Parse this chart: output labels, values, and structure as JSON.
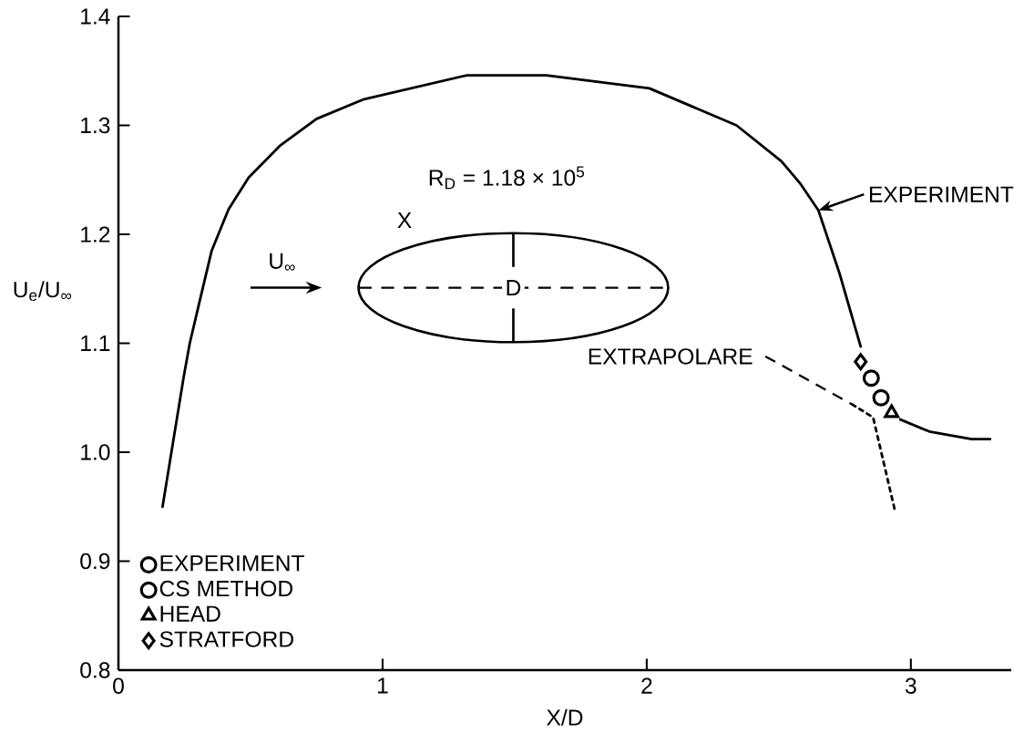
{
  "chart_data": {
    "type": "line",
    "xlabel": "X/D",
    "ylabel": "U$_{e}$/U$_{∞}$",
    "xlim": [
      0,
      3.38
    ],
    "ylim": [
      0.8,
      1.4
    ],
    "xticks": [
      0,
      1,
      2,
      3
    ],
    "yticks": [
      0.8,
      0.9,
      {
        "value": 1.0,
        "label": "1.0"
      },
      1.1,
      1.2,
      1.3,
      1.4
    ],
    "legend": "bottom left",
    "series": [
      {
        "name": "EXPERIMENT",
        "color": "#000000",
        "line_style": "solid",
        "x": [
          0.167,
          0.247,
          0.27,
          0.303,
          0.353,
          0.417,
          0.493,
          0.61,
          0.75,
          0.93,
          1.32,
          1.62,
          2.01,
          2.34,
          2.51,
          2.58,
          2.65,
          2.73,
          2.81,
          2.88,
          2.96,
          3.07,
          3.23,
          3.3
        ],
        "values": [
          0.95,
          1.069,
          1.1,
          1.134,
          1.185,
          1.223,
          1.252,
          1.281,
          1.306,
          1.324,
          1.346,
          1.346,
          1.334,
          1.3,
          1.267,
          1.247,
          1.222,
          1.164,
          1.097,
          null,
          1.03,
          1.019,
          1.012,
          1.012
        ]
      },
      {
        "color": "#000000",
        "line_style": "dotted",
        "x": [
          2.777,
          2.857,
          2.94
        ],
        "values": [
          1.044,
          1.032,
          0.946
        ]
      },
      {
        "type": "scatter",
        "name": "EXPERIMENT",
        "color": "#000000",
        "marker": "circle",
        "x": [
          2.887
        ],
        "values": [
          1.05
        ]
      },
      {
        "type": "scatter",
        "name": "CS METHOD",
        "color": "#000000",
        "marker": "circle",
        "x": [
          2.85
        ],
        "values": [
          1.068
        ]
      },
      {
        "type": "scatter",
        "name": "HEAD",
        "color": "#000000",
        "marker": "triangle",
        "x": [
          2.927
        ],
        "values": [
          1.036
        ]
      },
      {
        "type": "scatter",
        "name": "STRATFORD",
        "color": "#000000",
        "marker": "diamond",
        "x": [
          2.81
        ],
        "values": [
          1.083
        ]
      }
    ],
    "annotations": [
      "R$_{D}$ = 1.18 × 10$^{5}$",
      "X",
      "U$_{∞}$",
      "D",
      {
        "text": "EXTRAPOLARE",
        "x": 2.777,
        "y": 1.044
      }
    ]
  }
}
